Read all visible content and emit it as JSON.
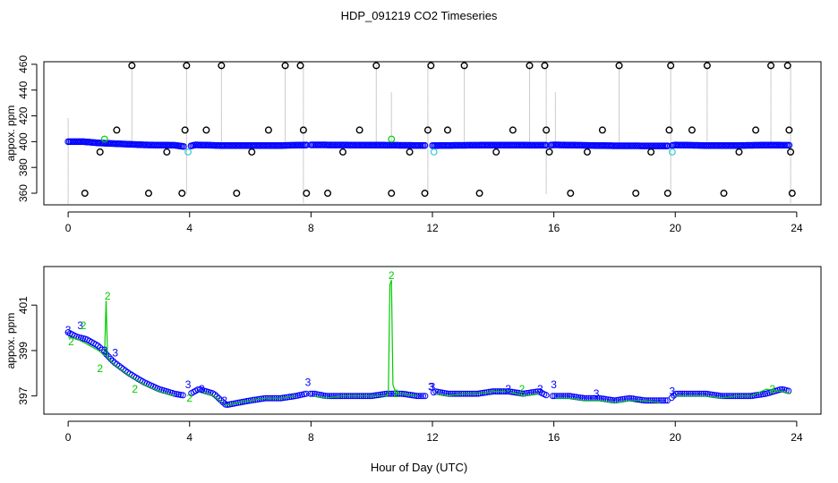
{
  "figure": {
    "title": "HDP_091219  CO2 Timeseries",
    "xlabel": "Hour of Day (UTC)"
  },
  "colors": {
    "axis": "#000000",
    "outlier": "#000000",
    "series3": "#0000ff",
    "series2": "#00cc00",
    "series2_light": "#33cccc",
    "drop_line": "#999999"
  },
  "chart_data": [
    {
      "type": "scatter",
      "name": "top-panel",
      "title": "HDP_091219  CO2 Timeseries",
      "xlabel": "",
      "ylabel": "appox. ppm",
      "xlim": [
        -0.8,
        24.8
      ],
      "ylim": [
        351,
        462
      ],
      "xticks": [
        0,
        4,
        8,
        12,
        16,
        20,
        24
      ],
      "yticks": [
        360,
        380,
        400,
        420,
        440,
        460
      ],
      "grid": false,
      "baseline": {
        "x": [
          0,
          0.5,
          1,
          1.5,
          2,
          2.5,
          3,
          3.5,
          3.9,
          4.2,
          5,
          6,
          7,
          8,
          10,
          12,
          14,
          15.8,
          16,
          18,
          19.8,
          20,
          21,
          22,
          23,
          23.8
        ],
        "y": [
          400,
          400,
          399,
          398.5,
          398,
          397.5,
          397.3,
          397.2,
          396,
          397.5,
          397,
          397,
          397,
          397.5,
          397.3,
          397,
          397.3,
          397.2,
          397.5,
          396.8,
          396.7,
          397.4,
          397,
          397,
          397.3,
          397.2
        ]
      },
      "gaps": [
        [
          3.8,
          4.0
        ],
        [
          7.85,
          7.95
        ],
        [
          11.8,
          12.0
        ],
        [
          15.8,
          15.9
        ],
        [
          19.78,
          19.88
        ]
      ],
      "outliers": {
        "x": [
          0.55,
          1.05,
          1.6,
          2.1,
          2.65,
          3.25,
          3.75,
          3.85,
          3.9,
          4.55,
          5.05,
          5.55,
          6.05,
          6.6,
          7.15,
          7.65,
          7.75,
          7.85,
          8.55,
          9.05,
          9.6,
          10.15,
          10.65,
          11.25,
          11.75,
          11.85,
          11.95,
          12.5,
          13.05,
          13.55,
          14.1,
          14.65,
          15.2,
          15.7,
          15.75,
          15.85,
          16.55,
          17.1,
          17.6,
          18.15,
          18.7,
          19.2,
          19.75,
          19.8,
          19.85,
          20.55,
          21.05,
          21.6,
          22.1,
          22.65,
          23.15,
          23.7,
          23.75,
          23.8,
          23.85
        ],
        "y": [
          360,
          392,
          409,
          459,
          360,
          392,
          360,
          409,
          459,
          409,
          459,
          360,
          392,
          409,
          459,
          459,
          409,
          360,
          360,
          392,
          409,
          459,
          360,
          392,
          360,
          409,
          459,
          409,
          459,
          360,
          392,
          409,
          459,
          459,
          409,
          392,
          360,
          392,
          409,
          459,
          360,
          392,
          360,
          409,
          459,
          409,
          459,
          360,
          392,
          409,
          459,
          459,
          409,
          392,
          360
        ]
      },
      "green_points": {
        "x": [
          1.2,
          10.65
        ],
        "y": [
          402,
          402
        ]
      },
      "cyan_points": {
        "x": [
          3.95,
          12.05,
          19.9
        ],
        "y": [
          392,
          392,
          392
        ]
      },
      "spikes": {
        "x": [
          0,
          2.1,
          3.9,
          5.05,
          7.15,
          7.75,
          10.15,
          10.65,
          11.85,
          13.05,
          15.2,
          15.75,
          16.05,
          18.15,
          19.85,
          21.05,
          23.15,
          23.8
        ],
        "top": [
          418,
          459,
          459,
          459,
          459,
          459,
          459,
          438,
          459,
          459,
          459,
          459,
          438,
          459,
          459,
          459,
          459,
          459
        ],
        "bottom": [
          352,
          396,
          359,
          396,
          396,
          352,
          396,
          396,
          359,
          396,
          396,
          359,
          396,
          396,
          359,
          396,
          396,
          352
        ]
      }
    },
    {
      "type": "line",
      "name": "bottom-panel",
      "title": "",
      "xlabel": "Hour of Day (UTC)",
      "ylabel": "appox. ppm",
      "xlim": [
        -0.8,
        24.8
      ],
      "ylim": [
        396.2,
        402.7
      ],
      "xticks": [
        0,
        4,
        8,
        12,
        16,
        20,
        24
      ],
      "yticks": [
        397,
        399,
        401
      ],
      "grid": false,
      "series": [
        {
          "name": "3",
          "x": [
            0,
            0.3,
            0.6,
            1,
            1.5,
            2,
            2.5,
            3,
            3.5,
            3.9,
            4.3,
            4.8,
            5.2,
            5.6,
            6,
            6.5,
            7,
            7.5,
            7.85,
            8.1,
            8.5,
            9,
            9.5,
            10,
            10.5,
            11,
            11.5,
            11.85,
            12.1,
            12.5,
            13,
            13.5,
            14,
            14.5,
            15,
            15.5,
            15.8,
            16.05,
            16.5,
            17,
            17.5,
            18,
            18.5,
            19,
            19.5,
            19.8,
            20,
            20.5,
            21,
            21.5,
            22,
            22.5,
            23,
            23.5,
            23.8
          ],
          "y": [
            399.8,
            399.6,
            399.5,
            399.2,
            398.5,
            398,
            397.6,
            397.3,
            397.1,
            397,
            397.3,
            397.1,
            396.6,
            396.7,
            396.8,
            396.9,
            396.9,
            397,
            397.1,
            397.1,
            397,
            397,
            397,
            397,
            397.1,
            397.1,
            397,
            397,
            397.2,
            397.1,
            397.1,
            397.1,
            397.2,
            397.2,
            397.1,
            397.2,
            397,
            397,
            397,
            396.9,
            396.9,
            396.8,
            396.9,
            396.8,
            396.8,
            396.8,
            397.1,
            397.1,
            397.1,
            397,
            397,
            397,
            397.1,
            397.3,
            397.2
          ],
          "markers": {
            "x": [
              0,
              0.4,
              1.2,
              1.55,
              3.95,
              4.4,
              5.15,
              7.9,
              11.95,
              12.0,
              14.5,
              15.55,
              16.0,
              17.4,
              19.9
            ],
            "y": [
              399.9,
              400.1,
              399.0,
              398.9,
              397.5,
              397.3,
              396.8,
              397.6,
              397.4,
              397.4,
              397.3,
              397.3,
              397.5,
              397.1,
              397.2
            ],
            "labels": [
              "3",
              "3",
              "3",
              "3",
              "3",
              "3",
              "3",
              "3",
              "3",
              "3",
              "3",
              "3",
              "3",
              "3",
              "3"
            ]
          }
        },
        {
          "name": "2",
          "x": [
            0,
            0.3,
            0.6,
            1,
            1.2,
            1.25,
            1.3,
            1.5,
            2,
            2.5,
            3,
            3.5,
            3.9,
            4.3,
            4.8,
            5.2,
            5.6,
            6,
            6.5,
            7,
            7.5,
            7.85,
            8.1,
            8.5,
            9,
            9.5,
            10,
            10.5,
            10.55,
            10.6,
            10.65,
            10.7,
            10.8,
            11,
            11.5,
            11.85,
            12.1,
            12.5,
            13,
            13.5,
            14,
            14.5,
            15,
            15.5,
            15.8,
            16.05,
            16.5,
            17,
            17.5,
            18,
            18.5,
            19,
            19.5,
            19.8,
            20,
            20.5,
            21,
            21.5,
            22,
            22.5,
            23,
            23.5,
            23.8
          ],
          "y": [
            399.6,
            399.5,
            399.3,
            399.0,
            398.8,
            401.2,
            398.7,
            398.4,
            397.9,
            397.5,
            397.2,
            397.0,
            396.9,
            397.2,
            397.0,
            396.6,
            396.7,
            396.8,
            396.9,
            396.9,
            397.0,
            397.0,
            397.0,
            396.9,
            397.0,
            397.0,
            397.0,
            397.0,
            397.2,
            401.9,
            402.1,
            397.5,
            397.1,
            397.1,
            397.0,
            397.0,
            397.1,
            397.0,
            397.1,
            397.1,
            397.2,
            397.2,
            397.0,
            397.1,
            396.9,
            396.9,
            396.9,
            396.8,
            396.8,
            396.7,
            396.8,
            396.8,
            396.7,
            396.7,
            397.0,
            397.0,
            397.0,
            396.9,
            397.0,
            397.0,
            397.3,
            397.2,
            397.1
          ],
          "markers": {
            "x": [
              0.1,
              0.5,
              1.3,
              1.05,
              2.2,
              4.0,
              10.65,
              10.8,
              14.95,
              23.2
            ],
            "y": [
              399.4,
              400.1,
              401.4,
              398.2,
              397.3,
              396.9,
              402.3,
              397.1,
              397.3,
              397.3
            ],
            "labels": [
              "2",
              "2",
              "2",
              "2",
              "2",
              "2",
              "2",
              "2",
              "2",
              "2"
            ]
          }
        }
      ]
    }
  ]
}
